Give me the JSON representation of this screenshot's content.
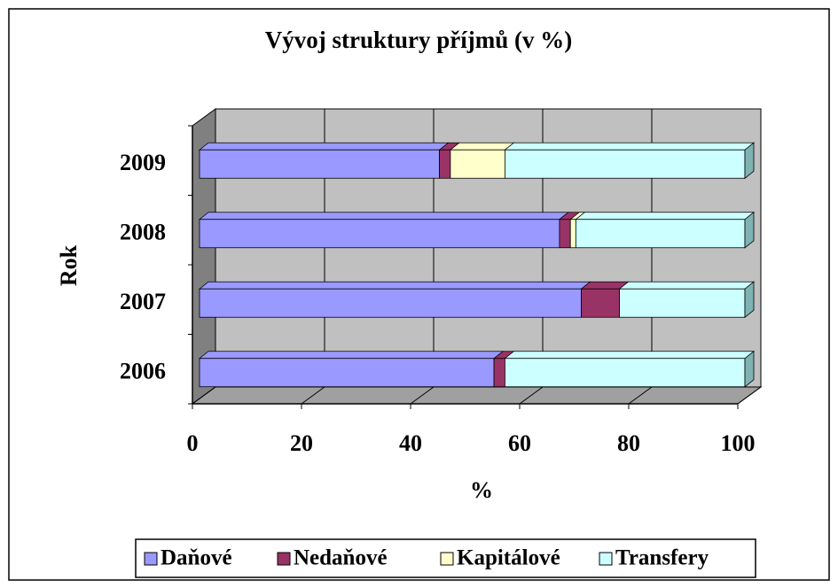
{
  "chart_data": {
    "type": "bar",
    "orientation": "horizontal",
    "stacked": true,
    "title": "Vývoj struktury příjmů (v %)",
    "x_label": "%",
    "y_label": "Rok",
    "categories": [
      "2006",
      "2007",
      "2008",
      "2009"
    ],
    "series": [
      {
        "name": "Daňové",
        "color": "#9999ff",
        "values": [
          54,
          70,
          66,
          44
        ]
      },
      {
        "name": "Nedaňové",
        "color": "#993366",
        "values": [
          2,
          7,
          2,
          2
        ]
      },
      {
        "name": "Kapitálové",
        "color": "#ffffcc",
        "values": [
          0,
          0,
          1,
          10
        ]
      },
      {
        "name": "Transfery",
        "color": "#ccffff",
        "values": [
          44,
          23,
          31,
          44
        ]
      }
    ],
    "xlim": [
      0,
      100
    ],
    "xticks": [
      0,
      20,
      40,
      60,
      80,
      100
    ],
    "grid": true,
    "legend": "bottom"
  }
}
